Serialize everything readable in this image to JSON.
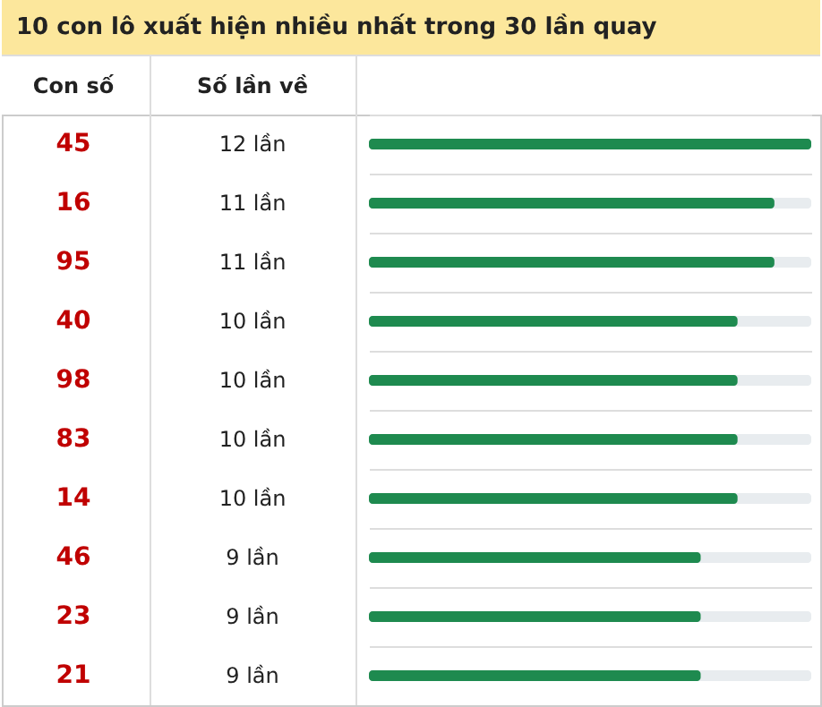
{
  "chart_data": {
    "type": "bar",
    "orientation": "horizontal",
    "title": "10 con lô xuất hiện nhiều nhất trong 30 lần quay",
    "categories": [
      "45",
      "16",
      "95",
      "40",
      "98",
      "83",
      "14",
      "46",
      "23",
      "21"
    ],
    "values": [
      12,
      11,
      11,
      10,
      10,
      10,
      10,
      9,
      9,
      9
    ],
    "value_labels": [
      "12 lần",
      "11 lần",
      "11 lần",
      "10 lần",
      "10 lần",
      "10 lần",
      "10 lần",
      "9 lần",
      "9 lần",
      "9 lần"
    ],
    "color": "#1e8a4f",
    "xlim": [
      0,
      12
    ],
    "annotations": [
      "Con số",
      "Số lần về"
    ]
  }
}
